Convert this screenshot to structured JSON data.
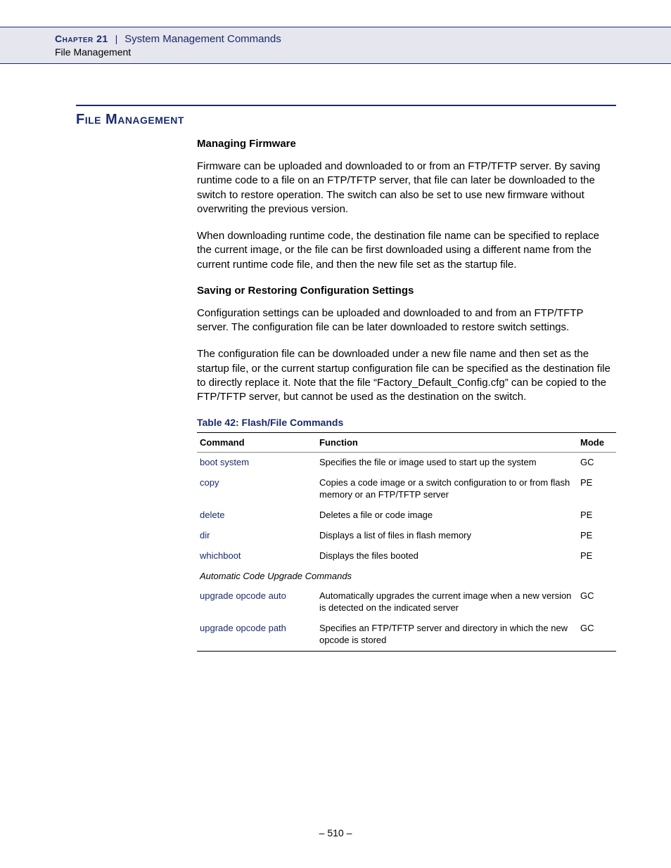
{
  "header": {
    "chapter_label": "Chapter 21",
    "separator": "|",
    "chapter_title": "System Management Commands",
    "sub_section": "File Management"
  },
  "section": {
    "heading": "File Management",
    "subheading1": "Managing Firmware",
    "para1": "Firmware can be uploaded and downloaded to or from an FTP/TFTP server. By saving runtime code to a file on an FTP/TFTP server, that file can later be downloaded to the switch to restore operation. The switch can also be set to use new firmware without overwriting the previous version.",
    "para2": "When downloading runtime code, the destination file name can be specified to replace the current image, or the file can be first downloaded using a different name from the current runtime code file, and then the new file set as the startup file.",
    "subheading2": "Saving or Restoring Configuration Settings",
    "para3": "Configuration settings can be uploaded and downloaded to and from an FTP/TFTP server. The configuration file can be later downloaded to restore switch settings.",
    "para4": "The configuration file can be downloaded under a new file name and then set as the startup file, or the current startup configuration file can be specified as the destination file to directly replace it. Note that the file “Factory_Default_Config.cfg” can be copied to the FTP/TFTP server, but cannot be used as the destination on the switch."
  },
  "table": {
    "caption": "Table 42: Flash/File Commands",
    "columns": [
      "Command",
      "Function",
      "Mode"
    ],
    "rows": [
      {
        "cmd": "boot system",
        "func": "Specifies the file or image used to start up the system",
        "mode": "GC"
      },
      {
        "cmd": "copy",
        "func": "Copies a code image or a switch configuration to or from flash memory or an FTP/TFTP server",
        "mode": "PE"
      },
      {
        "cmd": "delete",
        "func": "Deletes a file or code image",
        "mode": "PE"
      },
      {
        "cmd": "dir",
        "func": "Displays a list of files in flash memory",
        "mode": "PE"
      },
      {
        "cmd": "whichboot",
        "func": "Displays the files booted",
        "mode": "PE"
      }
    ],
    "subgroup_label": "Automatic Code Upgrade Commands",
    "rows2": [
      {
        "cmd": "upgrade opcode auto",
        "func": "Automatically upgrades the current image when a new version is detected on the indicated server",
        "mode": "GC"
      },
      {
        "cmd": "upgrade opcode path",
        "func": "Specifies an FTP/TFTP server and directory in which the new opcode is stored",
        "mode": "GC"
      }
    ]
  },
  "footer": {
    "page": "–  510  –"
  },
  "colors": {
    "accent": "#1a2a6b",
    "header_bg": "#e6e6ef"
  }
}
